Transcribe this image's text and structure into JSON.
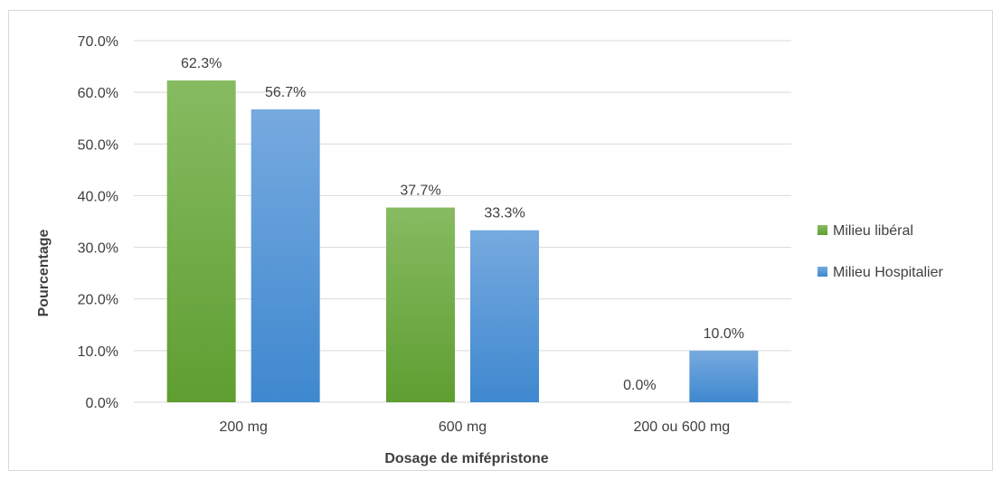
{
  "chart_data": {
    "type": "bar",
    "title": "",
    "xlabel": "Dosage de mifépristone",
    "ylabel": "Pourcentage",
    "categories": [
      "200 mg",
      "600 mg",
      "200 ou 600 mg"
    ],
    "series": [
      {
        "name": "Milieu libéral",
        "values": [
          62.3,
          37.7,
          0.0
        ],
        "labels": [
          "62.3%",
          "37.7%",
          "0.0%"
        ],
        "color_top": "#87bb62",
        "color_bottom": "#5f9e31"
      },
      {
        "name": "Milieu Hospitalier",
        "values": [
          56.7,
          33.3,
          10.0
        ],
        "labels": [
          "56.7%",
          "33.3%",
          "10.0%"
        ],
        "color_top": "#76aadf",
        "color_bottom": "#3f88cf"
      }
    ],
    "ylim": [
      0,
      70
    ],
    "yticks": [
      0,
      10,
      20,
      30,
      40,
      50,
      60,
      70
    ],
    "ytick_labels": [
      "0.0%",
      "10.0%",
      "20.0%",
      "30.0%",
      "40.0%",
      "50.0%",
      "60.0%",
      "70.0%"
    ],
    "grid": true,
    "legend_position": "right"
  }
}
